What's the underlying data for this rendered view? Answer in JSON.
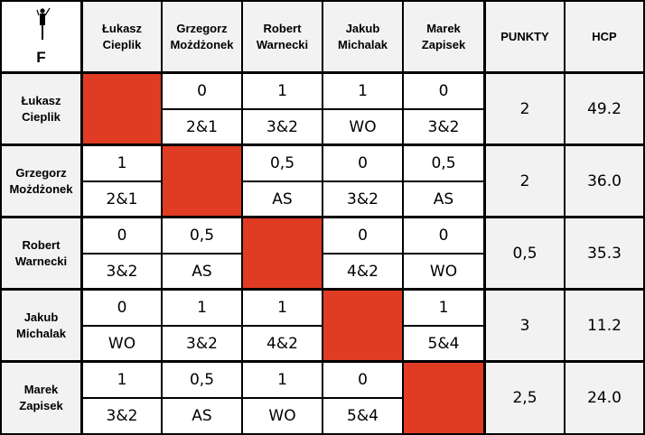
{
  "group": "F",
  "columns": [
    "Łukasz\nCieplik",
    "Grzegorz\nMożdżonek",
    "Robert\nWarnecki",
    "Jakub\nMichalak",
    "Marek\nZapisek"
  ],
  "points_header": "PUNKTY",
  "hcp_header": "HCP",
  "rows": [
    {
      "name": "Łukasz\nCieplik",
      "cells": [
        null,
        {
          "top": "0",
          "bottom": "2&1"
        },
        {
          "top": "1",
          "bottom": "3&2"
        },
        {
          "top": "1",
          "bottom": "WO"
        },
        {
          "top": "0",
          "bottom": "3&2"
        }
      ],
      "points": "2",
      "hcp": "49.2"
    },
    {
      "name": "Grzegorz\nMożdżonek",
      "cells": [
        {
          "top": "1",
          "bottom": "2&1"
        },
        null,
        {
          "top": "0,5",
          "bottom": "AS"
        },
        {
          "top": "0",
          "bottom": "3&2"
        },
        {
          "top": "0,5",
          "bottom": "AS"
        }
      ],
      "points": "2",
      "hcp": "36.0"
    },
    {
      "name": "Robert\nWarnecki",
      "cells": [
        {
          "top": "0",
          "bottom": "3&2"
        },
        {
          "top": "0,5",
          "bottom": "AS"
        },
        null,
        {
          "top": "0",
          "bottom": "4&2"
        },
        {
          "top": "0",
          "bottom": "WO"
        }
      ],
      "points": "0,5",
      "hcp": "35.3"
    },
    {
      "name": "Jakub\nMichalak",
      "cells": [
        {
          "top": "0",
          "bottom": "WO"
        },
        {
          "top": "1",
          "bottom": "3&2"
        },
        {
          "top": "1",
          "bottom": "4&2"
        },
        null,
        {
          "top": "1",
          "bottom": "5&4"
        }
      ],
      "points": "3",
      "hcp": "11.2"
    },
    {
      "name": "Marek\nZapisek",
      "cells": [
        {
          "top": "1",
          "bottom": "3&2"
        },
        {
          "top": "0,5",
          "bottom": "AS"
        },
        {
          "top": "1",
          "bottom": "WO"
        },
        {
          "top": "0",
          "bottom": "5&4"
        },
        null
      ],
      "points": "2,5",
      "hcp": "24.0"
    }
  ],
  "colors": {
    "diagonal": "#e03c24",
    "header_bg": "#f2f2f2",
    "grid": "#000000"
  },
  "icons": {
    "corner": "golfer-icon"
  }
}
